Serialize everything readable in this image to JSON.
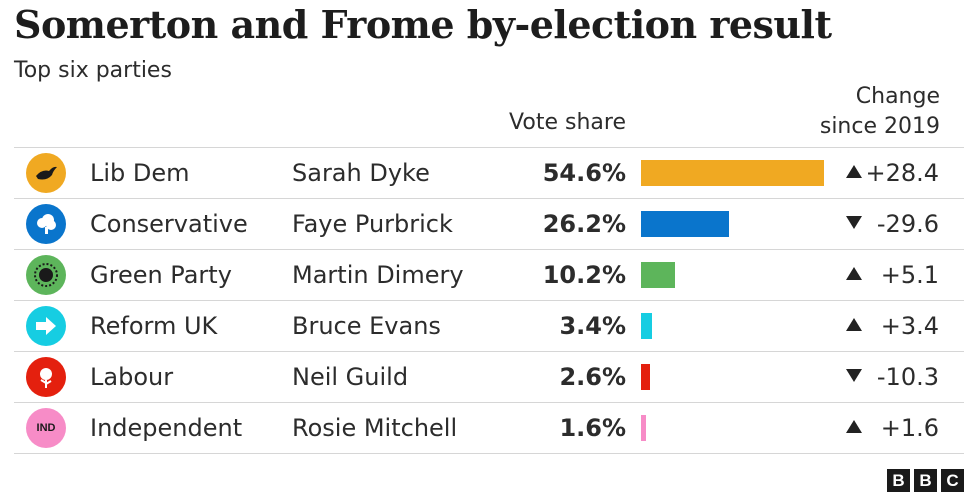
{
  "title": "Somerton and Frome by-election result",
  "subtitle": "Top six parties",
  "vote_share_header": "Vote share",
  "change_header_line1": "Change",
  "change_header_line2": "since 2019",
  "bbc_letters": [
    "B",
    "B",
    "C"
  ],
  "chart_data": {
    "type": "bar",
    "title": "Somerton and Frome by-election result",
    "subtitle": "Top six parties",
    "orientation": "horizontal",
    "xlim": [
      0,
      54.6
    ],
    "rows": [
      {
        "party": "Lib Dem",
        "candidate": "Sarah Dyke",
        "vote_share": 54.6,
        "vote_share_label": "54.6%",
        "change": 28.4,
        "change_label": "+28.4",
        "direction": "up",
        "color": "#f0a922",
        "logo_icon": "lib-dem-bird-icon",
        "logo_bg": "#f0a922"
      },
      {
        "party": "Conservative",
        "candidate": "Faye Purbrick",
        "vote_share": 26.2,
        "vote_share_label": "26.2%",
        "change": -29.6,
        "change_label": "-29.6",
        "direction": "down",
        "color": "#0a75cc",
        "logo_icon": "conservative-tree-icon",
        "logo_bg": "#0a75cc"
      },
      {
        "party": "Green Party",
        "candidate": "Martin Dimery",
        "vote_share": 10.2,
        "vote_share_label": "10.2%",
        "change": 5.1,
        "change_label": "+5.1",
        "direction": "up",
        "color": "#5db55b",
        "logo_icon": "green-earth-icon",
        "logo_bg": "#5db55b"
      },
      {
        "party": "Reform UK",
        "candidate": "Bruce Evans",
        "vote_share": 3.4,
        "vote_share_label": "3.4%",
        "change": 3.4,
        "change_label": "+3.4",
        "direction": "up",
        "color": "#16cde2",
        "logo_icon": "reform-arrow-icon",
        "logo_bg": "#16cde2"
      },
      {
        "party": "Labour",
        "candidate": "Neil Guild",
        "vote_share": 2.6,
        "vote_share_label": "2.6%",
        "change": -10.3,
        "change_label": "-10.3",
        "direction": "down",
        "color": "#e4200e",
        "logo_icon": "labour-rose-icon",
        "logo_bg": "#e4200e"
      },
      {
        "party": "Independent",
        "candidate": "Rosie Mitchell",
        "vote_share": 1.6,
        "vote_share_label": "1.6%",
        "change": 1.6,
        "change_label": "+1.6",
        "direction": "up",
        "color": "#f78cc7",
        "logo_icon": "independent-badge-icon",
        "logo_bg": "#f78cc7",
        "logo_text": "IND"
      }
    ]
  }
}
